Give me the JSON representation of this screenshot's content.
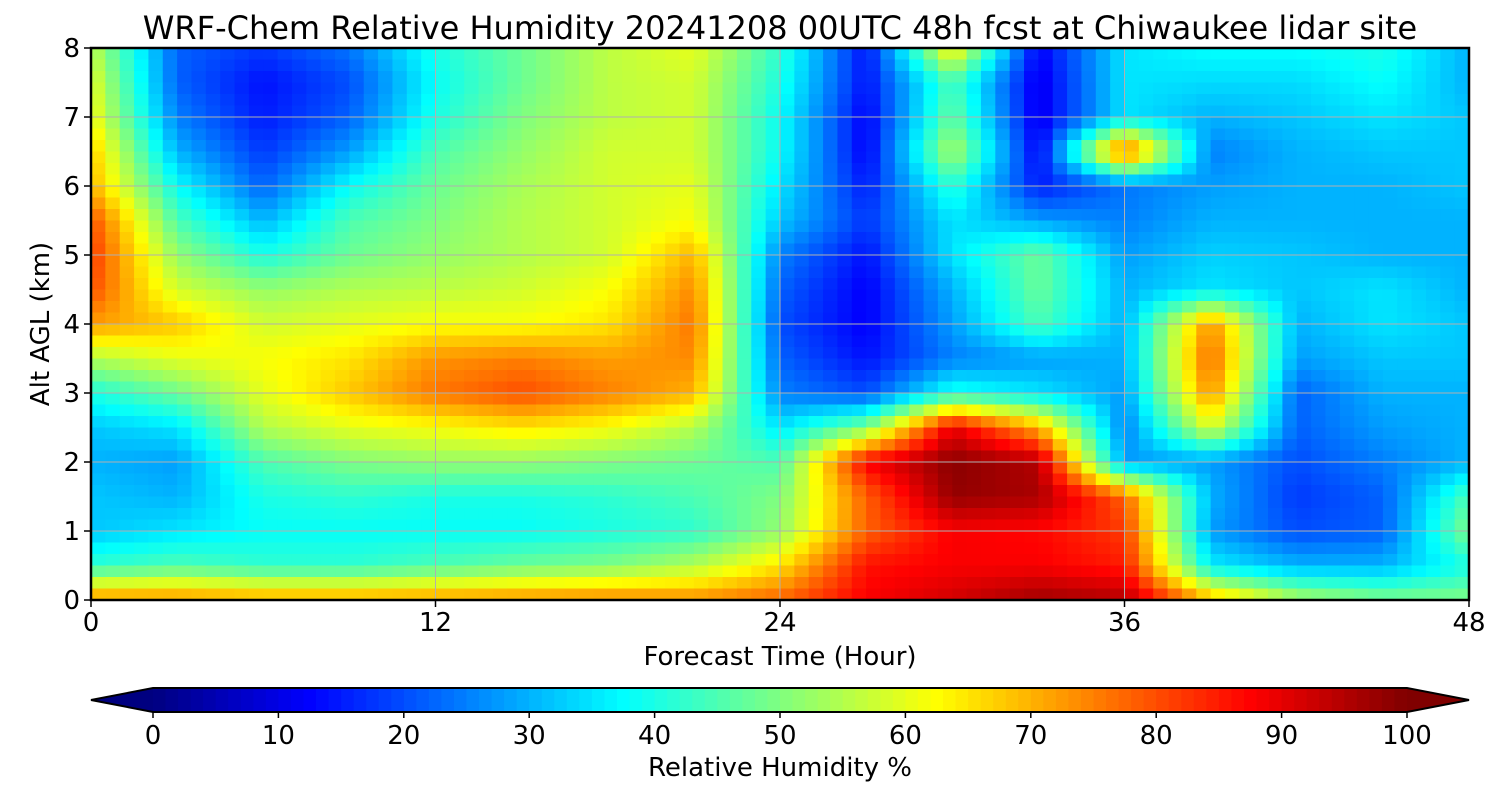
{
  "chart_data": {
    "type": "heatmap",
    "title": "WRF-Chem Relative Humidity 20241208 00UTC 48h fcst at Chiwaukee lidar site",
    "xlabel": "Forecast Time (Hour)",
    "ylabel": "Alt AGL (km)",
    "xlim": [
      0,
      48
    ],
    "ylim": [
      0,
      8
    ],
    "xticks": [
      0,
      12,
      24,
      36,
      48
    ],
    "yticks": [
      0,
      1,
      2,
      3,
      4,
      5,
      6,
      7,
      8
    ],
    "grid": true,
    "colormap": "jet",
    "colorbar": {
      "label": "Relative Humidity %",
      "ticks": [
        0,
        10,
        20,
        30,
        40,
        50,
        60,
        70,
        80,
        90,
        100
      ],
      "range": [
        0,
        100
      ],
      "extend": "both",
      "orientation": "horizontal",
      "placement": "bottom"
    },
    "x": [
      0,
      3,
      6,
      9,
      12,
      15,
      18,
      21,
      24,
      27,
      30,
      33,
      36,
      39,
      42,
      45,
      48
    ],
    "y": [
      0,
      0.5,
      1,
      1.5,
      2,
      2.5,
      3,
      3.5,
      4,
      4.5,
      5,
      5.5,
      6,
      6.5,
      7,
      7.5,
      8
    ],
    "z": [
      [
        74,
        74,
        72,
        72,
        73,
        74,
        75,
        74,
        78,
        88,
        92,
        97,
        95,
        70,
        55,
        50,
        50
      ],
      [
        42,
        45,
        42,
        42,
        45,
        48,
        50,
        55,
        65,
        86,
        88,
        88,
        85,
        36,
        30,
        30,
        40
      ],
      [
        32,
        35,
        38,
        38,
        38,
        38,
        40,
        42,
        52,
        78,
        88,
        87,
        82,
        28,
        20,
        22,
        50
      ],
      [
        32,
        30,
        40,
        42,
        40,
        40,
        42,
        45,
        50,
        78,
        98,
        96,
        78,
        30,
        18,
        22,
        45
      ],
      [
        30,
        28,
        45,
        50,
        52,
        52,
        50,
        48,
        45,
        88,
        99,
        95,
        28,
        28,
        20,
        25,
        30
      ],
      [
        32,
        35,
        55,
        60,
        62,
        65,
        62,
        55,
        35,
        50,
        90,
        70,
        25,
        60,
        22,
        28,
        30
      ],
      [
        40,
        48,
        60,
        68,
        76,
        80,
        75,
        70,
        25,
        20,
        40,
        35,
        28,
        74,
        22,
        30,
        30
      ],
      [
        55,
        60,
        62,
        65,
        73,
        75,
        72,
        74,
        22,
        14,
        25,
        28,
        30,
        78,
        28,
        32,
        32
      ],
      [
        72,
        68,
        58,
        60,
        62,
        62,
        65,
        76,
        20,
        12,
        28,
        45,
        30,
        74,
        30,
        35,
        32
      ],
      [
        80,
        58,
        52,
        55,
        56,
        58,
        62,
        74,
        22,
        12,
        30,
        48,
        30,
        35,
        32,
        35,
        30
      ],
      [
        82,
        52,
        40,
        48,
        52,
        55,
        58,
        70,
        25,
        14,
        35,
        48,
        28,
        33,
        32,
        30,
        30
      ],
      [
        80,
        45,
        30,
        45,
        50,
        55,
        58,
        62,
        32,
        18,
        35,
        28,
        25,
        30,
        30,
        30,
        30
      ],
      [
        70,
        38,
        22,
        38,
        48,
        54,
        58,
        60,
        35,
        15,
        42,
        15,
        24,
        28,
        30,
        30,
        32
      ],
      [
        68,
        30,
        18,
        28,
        45,
        52,
        58,
        58,
        38,
        12,
        55,
        12,
        80,
        25,
        30,
        32,
        32
      ],
      [
        62,
        25,
        15,
        22,
        40,
        50,
        56,
        58,
        38,
        12,
        48,
        10,
        35,
        30,
        32,
        35,
        32
      ],
      [
        60,
        22,
        14,
        20,
        38,
        48,
        56,
        58,
        40,
        14,
        45,
        10,
        35,
        34,
        34,
        38,
        30
      ],
      [
        56,
        22,
        18,
        24,
        40,
        48,
        56,
        60,
        42,
        14,
        65,
        12,
        35,
        38,
        38,
        40,
        30
      ]
    ]
  }
}
